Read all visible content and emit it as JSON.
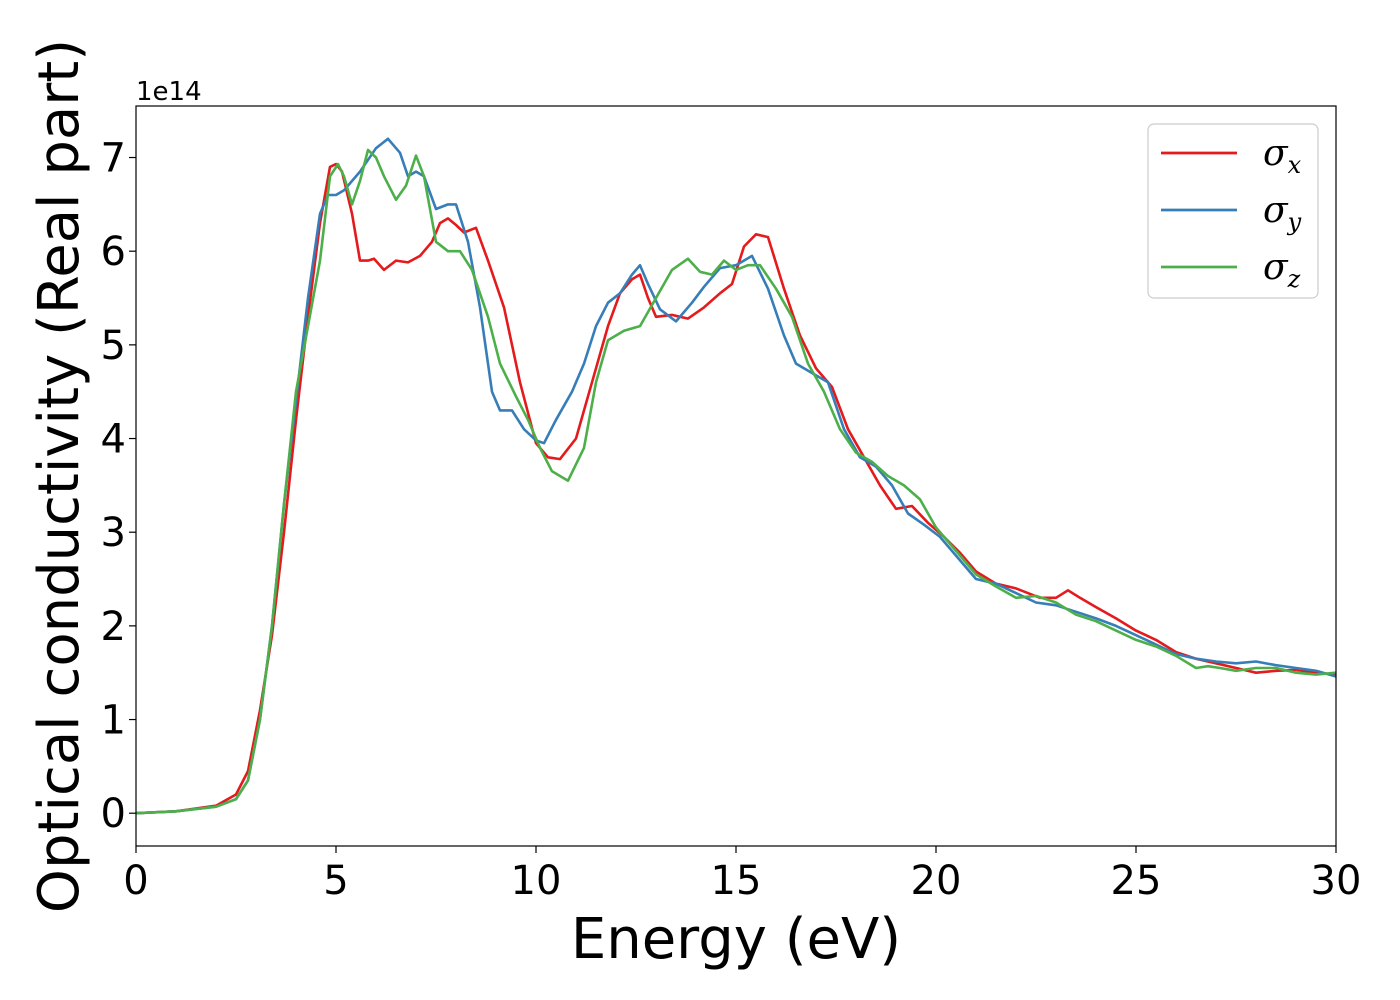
{
  "chart_data": {
    "type": "line",
    "title": "",
    "xlabel": "Energy (eV)",
    "ylabel": "Optical conductivity (Real part)",
    "y_offset_label": "1e14",
    "xlim": [
      0,
      30
    ],
    "ylim": [
      -0.35,
      7.55
    ],
    "x_ticks": [
      0,
      5,
      10,
      15,
      20,
      25,
      30
    ],
    "y_ticks": [
      0,
      1,
      2,
      3,
      4,
      5,
      6,
      7
    ],
    "grid": false,
    "legend_placement": "top-right",
    "series": [
      {
        "name": "σx",
        "sym": "σ",
        "sub": "x",
        "color": "#e41a1c",
        "points": [
          [
            0,
            0
          ],
          [
            1,
            0.02
          ],
          [
            2,
            0.08
          ],
          [
            2.5,
            0.2
          ],
          [
            2.8,
            0.45
          ],
          [
            3.1,
            1.1
          ],
          [
            3.4,
            1.9
          ],
          [
            3.7,
            3.0
          ],
          [
            4.0,
            4.2
          ],
          [
            4.3,
            5.3
          ],
          [
            4.6,
            6.3
          ],
          [
            4.85,
            6.9
          ],
          [
            5.0,
            6.93
          ],
          [
            5.15,
            6.85
          ],
          [
            5.4,
            6.4
          ],
          [
            5.6,
            5.9
          ],
          [
            5.8,
            5.9
          ],
          [
            5.95,
            5.92
          ],
          [
            6.2,
            5.8
          ],
          [
            6.5,
            5.9
          ],
          [
            6.8,
            5.88
          ],
          [
            7.1,
            5.95
          ],
          [
            7.4,
            6.1
          ],
          [
            7.6,
            6.3
          ],
          [
            7.8,
            6.35
          ],
          [
            8.0,
            6.28
          ],
          [
            8.2,
            6.2
          ],
          [
            8.5,
            6.25
          ],
          [
            8.8,
            5.9
          ],
          [
            9.2,
            5.4
          ],
          [
            9.6,
            4.6
          ],
          [
            10.0,
            3.95
          ],
          [
            10.3,
            3.8
          ],
          [
            10.6,
            3.78
          ],
          [
            11.0,
            4.0
          ],
          [
            11.4,
            4.6
          ],
          [
            11.8,
            5.2
          ],
          [
            12.1,
            5.55
          ],
          [
            12.4,
            5.7
          ],
          [
            12.6,
            5.75
          ],
          [
            12.8,
            5.5
          ],
          [
            13.0,
            5.3
          ],
          [
            13.4,
            5.32
          ],
          [
            13.8,
            5.28
          ],
          [
            14.2,
            5.4
          ],
          [
            14.6,
            5.55
          ],
          [
            14.9,
            5.65
          ],
          [
            15.2,
            6.05
          ],
          [
            15.5,
            6.18
          ],
          [
            15.8,
            6.15
          ],
          [
            16.2,
            5.6
          ],
          [
            16.6,
            5.1
          ],
          [
            17.0,
            4.75
          ],
          [
            17.4,
            4.55
          ],
          [
            17.8,
            4.1
          ],
          [
            18.2,
            3.8
          ],
          [
            18.6,
            3.5
          ],
          [
            19.0,
            3.25
          ],
          [
            19.4,
            3.28
          ],
          [
            19.8,
            3.1
          ],
          [
            20.2,
            2.95
          ],
          [
            20.6,
            2.78
          ],
          [
            21.0,
            2.58
          ],
          [
            21.5,
            2.45
          ],
          [
            22.0,
            2.4
          ],
          [
            22.6,
            2.3
          ],
          [
            23.0,
            2.3
          ],
          [
            23.3,
            2.38
          ],
          [
            23.6,
            2.3
          ],
          [
            24.0,
            2.2
          ],
          [
            24.5,
            2.08
          ],
          [
            25.0,
            1.95
          ],
          [
            25.5,
            1.85
          ],
          [
            26.0,
            1.72
          ],
          [
            26.5,
            1.65
          ],
          [
            27.0,
            1.6
          ],
          [
            27.5,
            1.55
          ],
          [
            28.0,
            1.5
          ],
          [
            28.5,
            1.52
          ],
          [
            29.0,
            1.53
          ],
          [
            29.5,
            1.5
          ],
          [
            30.0,
            1.48
          ]
        ]
      },
      {
        "name": "σy",
        "sym": "σ",
        "sub": "y",
        "color": "#377eb8",
        "points": [
          [
            0,
            0
          ],
          [
            1,
            0.02
          ],
          [
            2,
            0.07
          ],
          [
            2.5,
            0.15
          ],
          [
            2.8,
            0.35
          ],
          [
            3.1,
            1.0
          ],
          [
            3.4,
            2.0
          ],
          [
            3.7,
            3.3
          ],
          [
            4.0,
            4.4
          ],
          [
            4.3,
            5.5
          ],
          [
            4.6,
            6.4
          ],
          [
            4.8,
            6.6
          ],
          [
            5.0,
            6.6
          ],
          [
            5.2,
            6.65
          ],
          [
            5.6,
            6.85
          ],
          [
            6.0,
            7.1
          ],
          [
            6.3,
            7.2
          ],
          [
            6.6,
            7.05
          ],
          [
            6.8,
            6.8
          ],
          [
            7.0,
            6.85
          ],
          [
            7.2,
            6.8
          ],
          [
            7.5,
            6.45
          ],
          [
            7.8,
            6.5
          ],
          [
            8.0,
            6.5
          ],
          [
            8.3,
            6.1
          ],
          [
            8.6,
            5.4
          ],
          [
            8.9,
            4.5
          ],
          [
            9.1,
            4.3
          ],
          [
            9.4,
            4.3
          ],
          [
            9.7,
            4.1
          ],
          [
            10.0,
            3.98
          ],
          [
            10.2,
            3.95
          ],
          [
            10.5,
            4.2
          ],
          [
            10.9,
            4.5
          ],
          [
            11.2,
            4.8
          ],
          [
            11.5,
            5.2
          ],
          [
            11.8,
            5.45
          ],
          [
            12.1,
            5.55
          ],
          [
            12.4,
            5.75
          ],
          [
            12.6,
            5.85
          ],
          [
            12.8,
            5.65
          ],
          [
            13.1,
            5.38
          ],
          [
            13.5,
            5.25
          ],
          [
            13.9,
            5.45
          ],
          [
            14.2,
            5.62
          ],
          [
            14.6,
            5.82
          ],
          [
            15.0,
            5.85
          ],
          [
            15.4,
            5.95
          ],
          [
            15.8,
            5.6
          ],
          [
            16.2,
            5.1
          ],
          [
            16.5,
            4.8
          ],
          [
            16.9,
            4.7
          ],
          [
            17.3,
            4.6
          ],
          [
            17.7,
            4.1
          ],
          [
            18.1,
            3.8
          ],
          [
            18.5,
            3.7
          ],
          [
            18.9,
            3.5
          ],
          [
            19.3,
            3.2
          ],
          [
            19.7,
            3.08
          ],
          [
            20.1,
            2.95
          ],
          [
            20.5,
            2.75
          ],
          [
            21.0,
            2.5
          ],
          [
            21.5,
            2.45
          ],
          [
            22.0,
            2.35
          ],
          [
            22.5,
            2.25
          ],
          [
            23.0,
            2.22
          ],
          [
            23.5,
            2.15
          ],
          [
            24.0,
            2.08
          ],
          [
            24.5,
            2.0
          ],
          [
            25.0,
            1.9
          ],
          [
            25.5,
            1.8
          ],
          [
            26.0,
            1.7
          ],
          [
            26.5,
            1.65
          ],
          [
            27.0,
            1.62
          ],
          [
            27.5,
            1.6
          ],
          [
            28.0,
            1.62
          ],
          [
            28.5,
            1.58
          ],
          [
            29.0,
            1.55
          ],
          [
            29.5,
            1.52
          ],
          [
            30.0,
            1.46
          ]
        ]
      },
      {
        "name": "σz",
        "sym": "σ",
        "sub": "z",
        "color": "#4daf4a",
        "points": [
          [
            0,
            0
          ],
          [
            1,
            0.02
          ],
          [
            2,
            0.07
          ],
          [
            2.5,
            0.15
          ],
          [
            2.8,
            0.35
          ],
          [
            3.1,
            1.0
          ],
          [
            3.4,
            2.0
          ],
          [
            3.7,
            3.3
          ],
          [
            4.0,
            4.5
          ],
          [
            4.3,
            5.2
          ],
          [
            4.6,
            5.9
          ],
          [
            4.85,
            6.8
          ],
          [
            5.05,
            6.93
          ],
          [
            5.2,
            6.8
          ],
          [
            5.4,
            6.5
          ],
          [
            5.6,
            6.75
          ],
          [
            5.8,
            7.08
          ],
          [
            6.0,
            7.0
          ],
          [
            6.2,
            6.8
          ],
          [
            6.5,
            6.55
          ],
          [
            6.75,
            6.7
          ],
          [
            7.0,
            7.02
          ],
          [
            7.2,
            6.8
          ],
          [
            7.5,
            6.1
          ],
          [
            7.8,
            6.0
          ],
          [
            8.1,
            6.0
          ],
          [
            8.4,
            5.8
          ],
          [
            8.8,
            5.3
          ],
          [
            9.1,
            4.8
          ],
          [
            9.5,
            4.45
          ],
          [
            9.8,
            4.2
          ],
          [
            10.1,
            3.9
          ],
          [
            10.4,
            3.65
          ],
          [
            10.8,
            3.55
          ],
          [
            11.2,
            3.9
          ],
          [
            11.5,
            4.6
          ],
          [
            11.8,
            5.05
          ],
          [
            12.2,
            5.15
          ],
          [
            12.6,
            5.2
          ],
          [
            13.0,
            5.5
          ],
          [
            13.4,
            5.8
          ],
          [
            13.8,
            5.92
          ],
          [
            14.1,
            5.78
          ],
          [
            14.4,
            5.75
          ],
          [
            14.7,
            5.9
          ],
          [
            15.0,
            5.8
          ],
          [
            15.3,
            5.85
          ],
          [
            15.6,
            5.85
          ],
          [
            16.0,
            5.6
          ],
          [
            16.4,
            5.3
          ],
          [
            16.8,
            4.8
          ],
          [
            17.2,
            4.5
          ],
          [
            17.6,
            4.1
          ],
          [
            18.0,
            3.85
          ],
          [
            18.4,
            3.75
          ],
          [
            18.8,
            3.6
          ],
          [
            19.2,
            3.5
          ],
          [
            19.6,
            3.35
          ],
          [
            20.0,
            3.05
          ],
          [
            20.5,
            2.8
          ],
          [
            21.0,
            2.55
          ],
          [
            21.5,
            2.42
          ],
          [
            22.0,
            2.3
          ],
          [
            22.5,
            2.32
          ],
          [
            23.0,
            2.25
          ],
          [
            23.5,
            2.12
          ],
          [
            24.0,
            2.05
          ],
          [
            24.5,
            1.95
          ],
          [
            25.0,
            1.85
          ],
          [
            25.5,
            1.78
          ],
          [
            26.0,
            1.68
          ],
          [
            26.5,
            1.55
          ],
          [
            26.8,
            1.57
          ],
          [
            27.1,
            1.55
          ],
          [
            27.5,
            1.52
          ],
          [
            28.0,
            1.55
          ],
          [
            28.5,
            1.55
          ],
          [
            29.0,
            1.5
          ],
          [
            29.5,
            1.48
          ],
          [
            30.0,
            1.5
          ]
        ]
      }
    ]
  }
}
